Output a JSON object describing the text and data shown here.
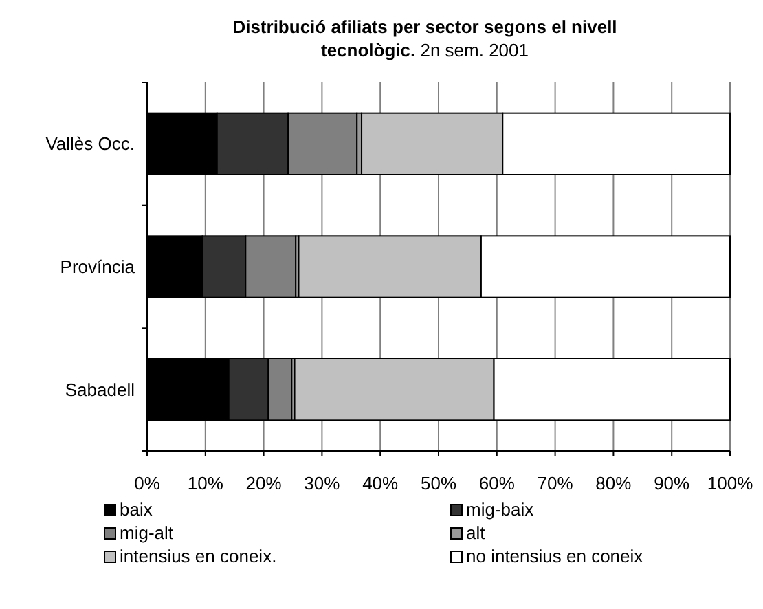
{
  "chart_data": {
    "type": "bar",
    "orientation": "horizontal",
    "stacked": true,
    "title": "Distribució afiliats per sector segons el nivell tecnològic.",
    "subtitle": "2n sem. 2001",
    "categories": [
      "Vallès Occ.",
      "Província",
      "Sabadell"
    ],
    "series": [
      {
        "name": "baix",
        "color": "#000000",
        "values": [
          12,
          9.5,
          14
        ]
      },
      {
        "name": "mig-baix",
        "color": "#333333",
        "values": [
          12.2,
          7.4,
          6.8
        ]
      },
      {
        "name": "mig-alt",
        "color": "#808080",
        "values": [
          11.8,
          8.6,
          4
        ]
      },
      {
        "name": "alt",
        "color": "#999999",
        "values": [
          0.8,
          0.5,
          0.5
        ]
      },
      {
        "name": "intensius en coneix.",
        "color": "#c0c0c0",
        "values": [
          24.2,
          31.3,
          34.2
        ]
      },
      {
        "name": "no intensius en coneix",
        "color": "#ffffff",
        "values": [
          39,
          42.7,
          40.5
        ]
      }
    ],
    "xlim": [
      0,
      100
    ],
    "xticks": [
      {
        "value": 0,
        "label": "0%"
      },
      {
        "value": 10,
        "label": "10%"
      },
      {
        "value": 20,
        "label": "20%"
      },
      {
        "value": 30,
        "label": "30%"
      },
      {
        "value": 40,
        "label": "40%"
      },
      {
        "value": 50,
        "label": "50%"
      },
      {
        "value": 60,
        "label": "60%"
      },
      {
        "value": 70,
        "label": "70%"
      },
      {
        "value": 80,
        "label": "80%"
      },
      {
        "value": 90,
        "label": "90%"
      },
      {
        "value": 100,
        "label": "100%"
      }
    ],
    "grid": "x",
    "legend": "bottom"
  }
}
